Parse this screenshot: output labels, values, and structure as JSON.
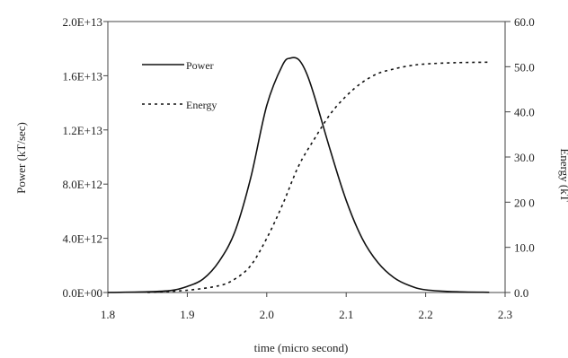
{
  "chart_data": {
    "type": "line",
    "xlabel": "time (micro second)",
    "ylabel_left": "Power (kT/sec)",
    "ylabel_right": "Energy (kT",
    "xlim": [
      1.8,
      2.3
    ],
    "ylim_left": [
      0,
      20000000000000.0
    ],
    "ylim_right": [
      0,
      60
    ],
    "x_ticks": [
      "1.8",
      "1.9",
      "2.0",
      "2.1",
      "2.2",
      "2.3"
    ],
    "y_left_ticks": [
      "0.0E+00",
      "4.0E+12",
      "8.0E+12",
      "1.2E+13",
      "1.6E+13",
      "2.0E+13"
    ],
    "y_right_ticks": [
      "0.0",
      "10.0",
      "20 0",
      "30.0",
      "40.0",
      "50.0",
      "60.0"
    ],
    "grid": false,
    "legend_position": "top-left",
    "series": [
      {
        "name": "Power",
        "axis": "left",
        "style": "solid",
        "x": [
          1.8,
          1.85,
          1.88,
          1.9,
          1.92,
          1.94,
          1.96,
          1.98,
          2.0,
          2.02,
          2.03,
          2.04,
          2.05,
          2.06,
          2.08,
          2.1,
          2.12,
          2.14,
          2.16,
          2.18,
          2.2,
          2.24,
          2.28
        ],
        "y": [
          0,
          50000000000.0,
          150000000000.0,
          450000000000.0,
          1000000000000.0,
          2300000000000.0,
          4500000000000.0,
          8500000000000.0,
          13800000000000.0,
          16800000000000.0,
          17300000000000.0,
          17200000000000.0,
          16200000000000.0,
          14500000000000.0,
          10500000000000.0,
          6800000000000.0,
          4000000000000.0,
          2200000000000.0,
          1100000000000.0,
          500000000000.0,
          200000000000.0,
          50000000000.0,
          10000000000.0
        ]
      },
      {
        "name": "Energy",
        "axis": "right",
        "style": "dashed",
        "x": [
          1.85,
          1.9,
          1.94,
          1.96,
          1.98,
          2.0,
          2.02,
          2.04,
          2.06,
          2.08,
          2.1,
          2.12,
          2.14,
          2.16,
          2.18,
          2.2,
          2.24,
          2.28
        ],
        "y": [
          0,
          0.5,
          1.5,
          3.0,
          6.0,
          12.0,
          19.5,
          28.0,
          34.0,
          39.5,
          43.5,
          46.5,
          48.5,
          49.5,
          50.2,
          50.6,
          50.9,
          51.0
        ]
      }
    ]
  }
}
